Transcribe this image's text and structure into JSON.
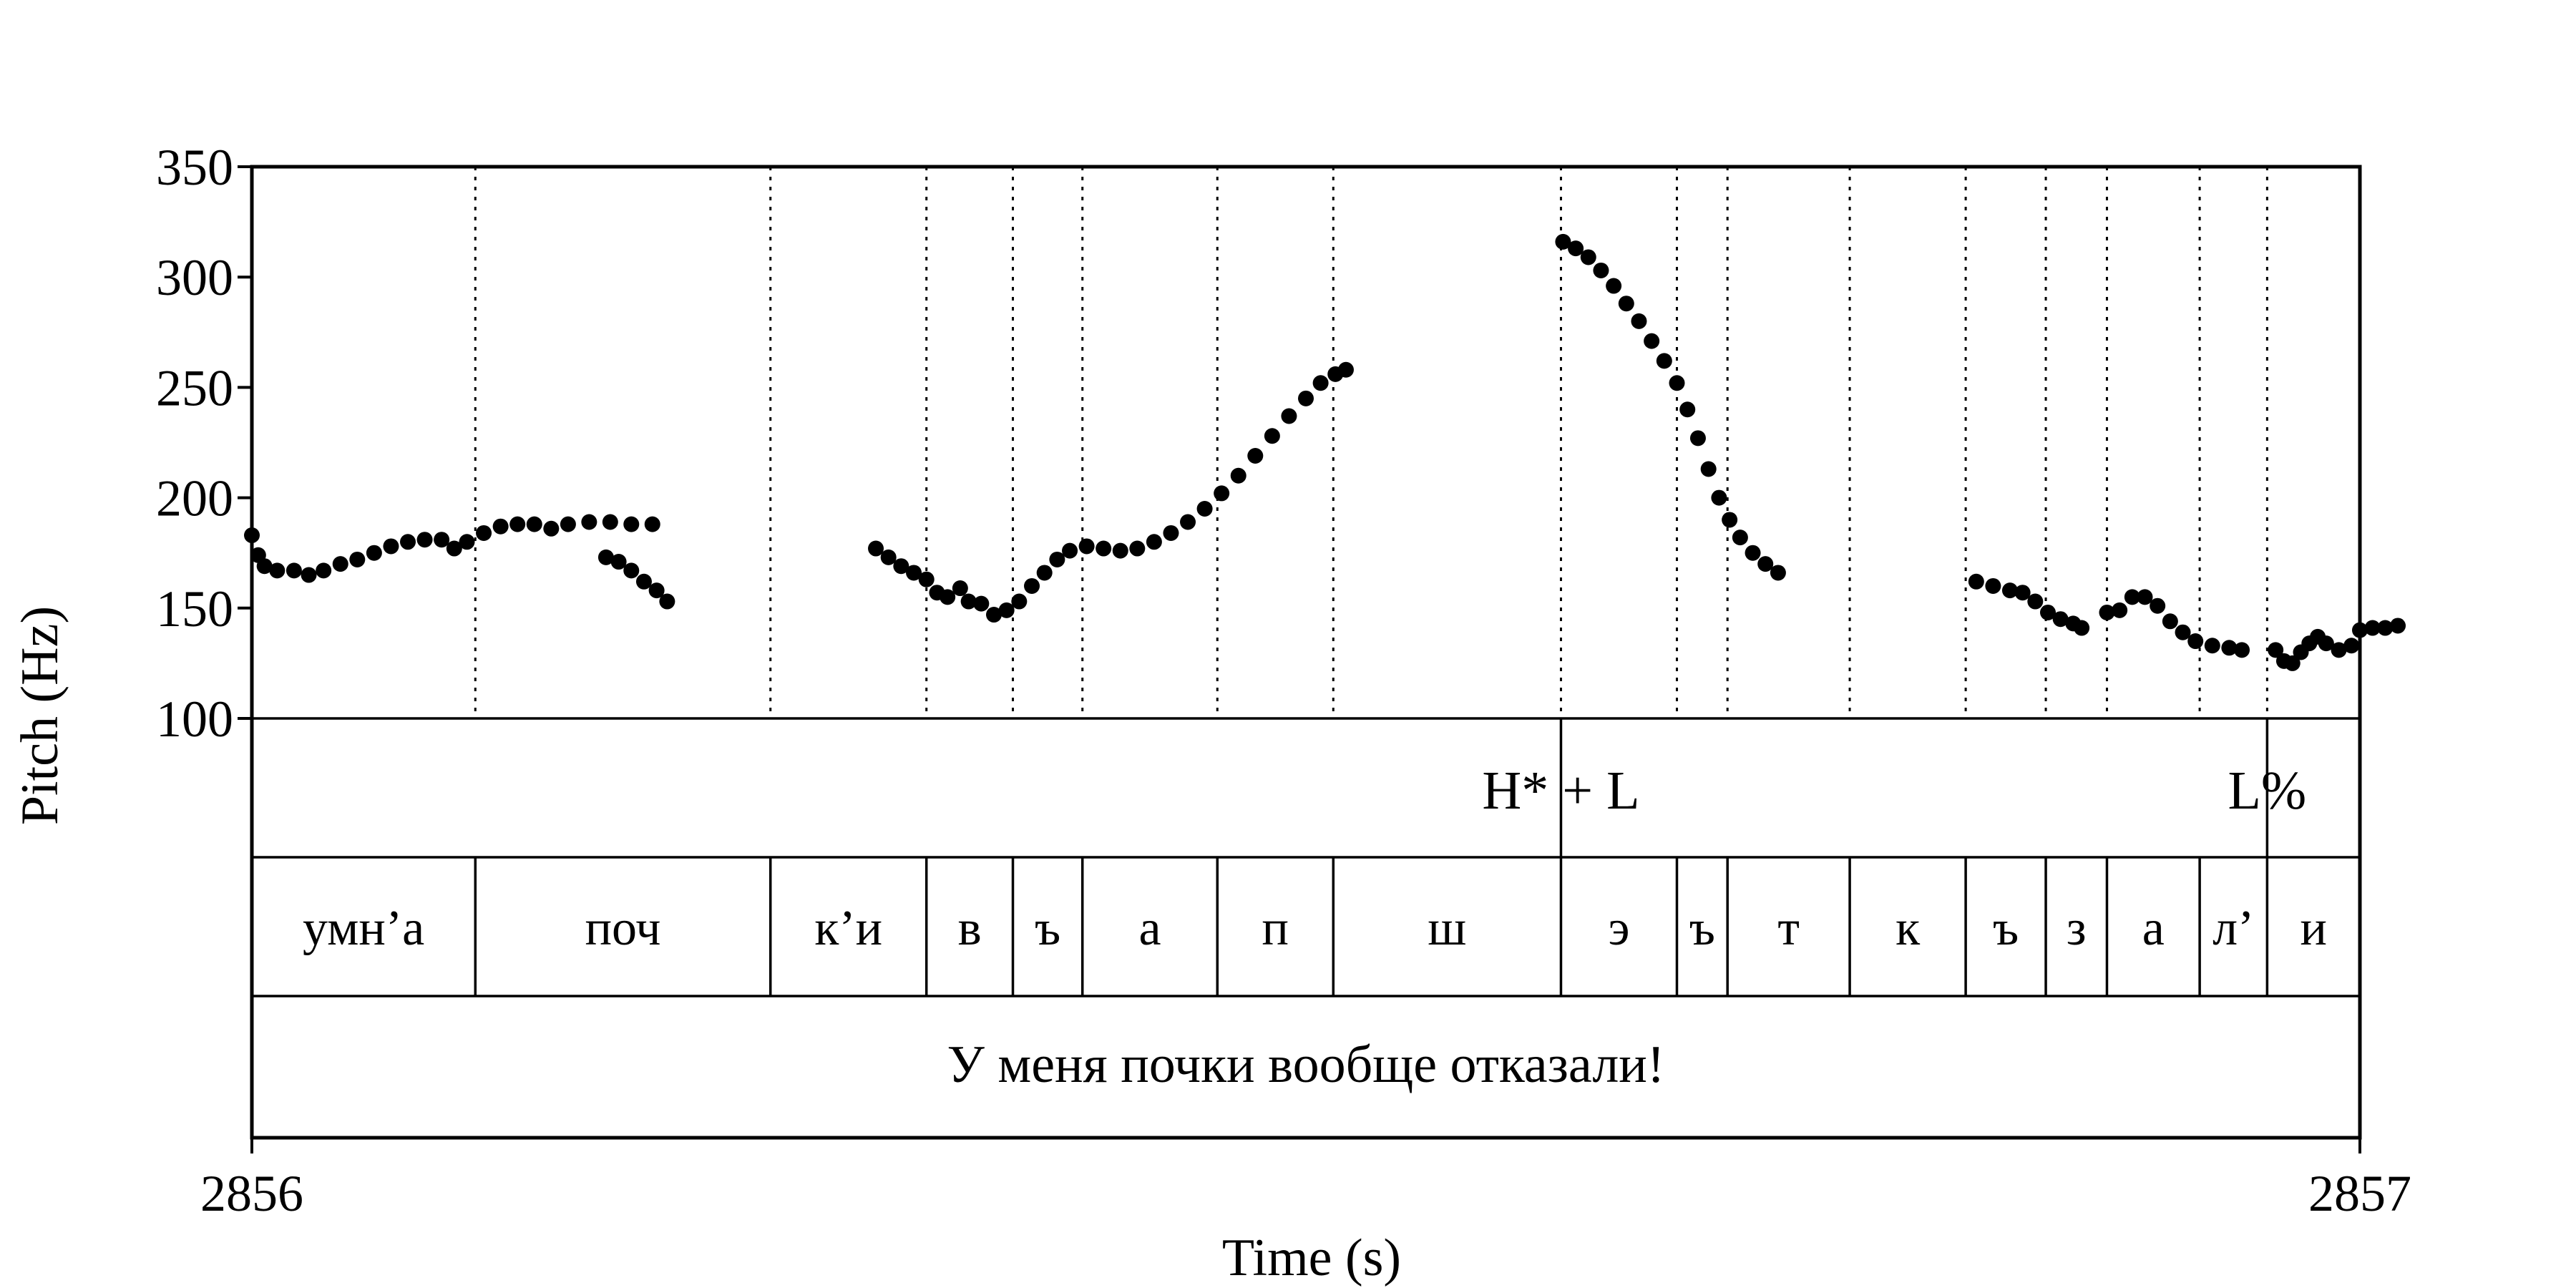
{
  "chart_data": {
    "type": "scatter",
    "xlabel": "Time (s)",
    "ylabel": "Pitch (Hz)",
    "xlim": [
      2856,
      2857
    ],
    "ylim": [
      100,
      350
    ],
    "yticks": [
      100,
      150,
      200,
      250,
      300,
      350
    ],
    "xtick_labels": [
      "2856",
      "2857"
    ],
    "grid": false,
    "pitch_contours": [
      [
        [
          0.0,
          183
        ],
        [
          0.003,
          174
        ],
        [
          0.006,
          169
        ],
        [
          0.012,
          167
        ],
        [
          0.02,
          167
        ],
        [
          0.027,
          165
        ],
        [
          0.034,
          167
        ],
        [
          0.042,
          170
        ],
        [
          0.05,
          172
        ],
        [
          0.058,
          175
        ],
        [
          0.066,
          178
        ],
        [
          0.074,
          180
        ],
        [
          0.082,
          181
        ],
        [
          0.09,
          181
        ],
        [
          0.096,
          177
        ],
        [
          0.102,
          180
        ],
        [
          0.11,
          184
        ],
        [
          0.118,
          187
        ],
        [
          0.126,
          188
        ],
        [
          0.134,
          188
        ],
        [
          0.142,
          186
        ],
        [
          0.15,
          188
        ],
        [
          0.16,
          189
        ],
        [
          0.17,
          189
        ],
        [
          0.18,
          188
        ],
        [
          0.19,
          188
        ]
      ],
      [
        [
          0.168,
          173
        ],
        [
          0.174,
          171
        ],
        [
          0.18,
          167
        ],
        [
          0.186,
          162
        ],
        [
          0.192,
          158
        ],
        [
          0.197,
          153
        ]
      ],
      [
        [
          0.296,
          177
        ],
        [
          0.302,
          173
        ],
        [
          0.308,
          169
        ],
        [
          0.314,
          166
        ],
        [
          0.32,
          163
        ],
        [
          0.325,
          157
        ],
        [
          0.33,
          155
        ],
        [
          0.336,
          159
        ],
        [
          0.34,
          153
        ],
        [
          0.346,
          152
        ],
        [
          0.352,
          147
        ],
        [
          0.358,
          149
        ],
        [
          0.364,
          153
        ],
        [
          0.37,
          160
        ],
        [
          0.376,
          166
        ],
        [
          0.382,
          172
        ],
        [
          0.388,
          176
        ],
        [
          0.396,
          178
        ],
        [
          0.404,
          177
        ],
        [
          0.412,
          176
        ],
        [
          0.42,
          177
        ],
        [
          0.428,
          180
        ],
        [
          0.436,
          184
        ],
        [
          0.444,
          189
        ],
        [
          0.452,
          195
        ],
        [
          0.46,
          202
        ],
        [
          0.468,
          210
        ],
        [
          0.476,
          219
        ],
        [
          0.484,
          228
        ],
        [
          0.492,
          237
        ],
        [
          0.5,
          245
        ],
        [
          0.507,
          252
        ],
        [
          0.514,
          256
        ],
        [
          0.519,
          258
        ]
      ],
      [
        [
          0.622,
          316
        ],
        [
          0.628,
          313
        ],
        [
          0.634,
          309
        ],
        [
          0.64,
          303
        ],
        [
          0.646,
          296
        ],
        [
          0.652,
          288
        ],
        [
          0.658,
          280
        ],
        [
          0.664,
          271
        ],
        [
          0.67,
          262
        ],
        [
          0.676,
          252
        ],
        [
          0.681,
          240
        ],
        [
          0.686,
          227
        ],
        [
          0.691,
          213
        ],
        [
          0.696,
          200
        ],
        [
          0.701,
          190
        ],
        [
          0.706,
          182
        ],
        [
          0.712,
          175
        ],
        [
          0.718,
          170
        ],
        [
          0.724,
          166
        ]
      ],
      [
        [
          0.818,
          162
        ],
        [
          0.826,
          160
        ],
        [
          0.834,
          158
        ],
        [
          0.84,
          157
        ],
        [
          0.846,
          153
        ],
        [
          0.852,
          148
        ],
        [
          0.858,
          145
        ],
        [
          0.864,
          143
        ],
        [
          0.868,
          141
        ]
      ],
      [
        [
          0.88,
          148
        ],
        [
          0.886,
          149
        ],
        [
          0.892,
          155
        ],
        [
          0.898,
          155
        ],
        [
          0.904,
          151
        ],
        [
          0.91,
          144
        ],
        [
          0.916,
          139
        ],
        [
          0.922,
          135
        ],
        [
          0.93,
          133
        ],
        [
          0.938,
          132
        ],
        [
          0.944,
          131
        ]
      ],
      [
        [
          0.96,
          131
        ],
        [
          0.964,
          126
        ],
        [
          0.968,
          125
        ],
        [
          0.972,
          130
        ],
        [
          0.976,
          134
        ],
        [
          0.98,
          137
        ],
        [
          0.984,
          134
        ],
        [
          0.99,
          131
        ],
        [
          0.996,
          133
        ],
        [
          1.0,
          140
        ],
        [
          1.006,
          141
        ],
        [
          1.012,
          141
        ],
        [
          1.018,
          142
        ]
      ]
    ],
    "segment_boundaries": [
      0.106,
      0.246,
      0.32,
      0.361,
      0.394,
      0.458,
      0.513,
      0.621,
      0.676,
      0.7,
      0.758,
      0.813,
      0.851,
      0.88,
      0.924,
      0.956
    ],
    "tone_tier": {
      "boundaries": [
        0.621,
        0.956
      ],
      "labels": [
        {
          "text": "H* + L",
          "t": 0.621
        },
        {
          "text": "L%",
          "t": 0.956
        }
      ]
    },
    "segment_labels": [
      "умн’а",
      "поч",
      "к’и",
      "в",
      "ъ",
      "а",
      "п",
      "ш",
      "э",
      "ъ",
      "т",
      "к",
      "ъ",
      "з",
      "а",
      "л’",
      "и"
    ],
    "sentence": "У меня почки вообще отказали!"
  }
}
